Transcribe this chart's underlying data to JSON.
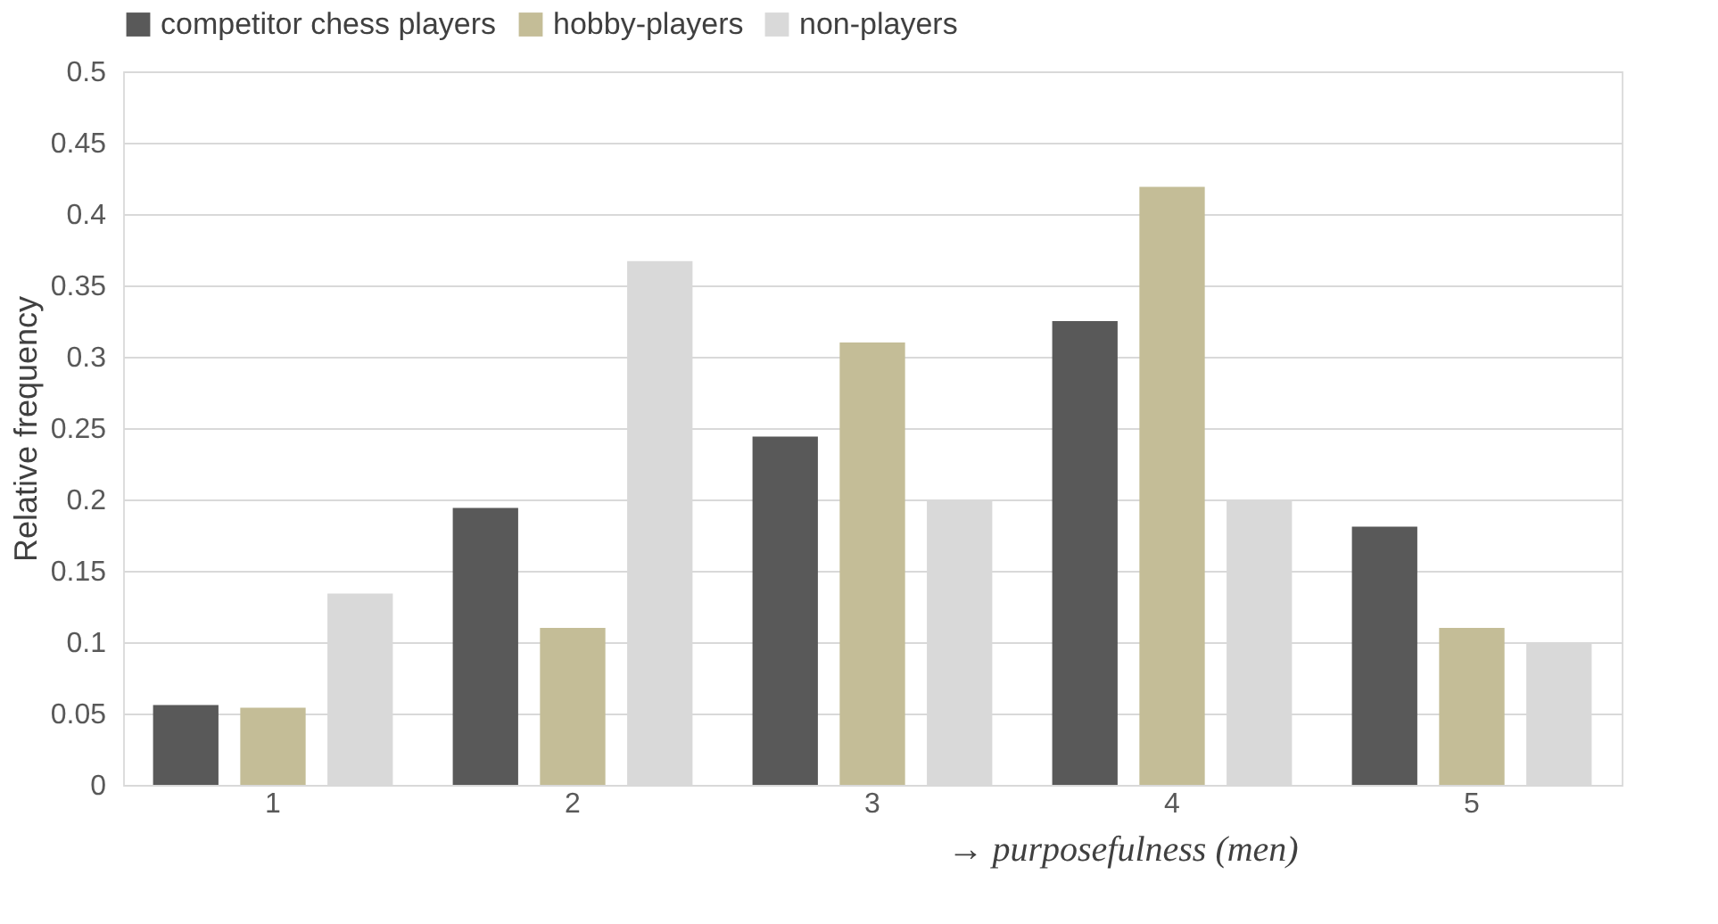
{
  "chart_data": {
    "type": "bar",
    "xlabel": "→ purposefulness (men)",
    "ylabel": "Relative frequency",
    "categories": [
      "1",
      "2",
      "3",
      "4",
      "5"
    ],
    "series": [
      {
        "name": "competitor chess players",
        "color": "#595959",
        "values": [
          0.056,
          0.194,
          0.244,
          0.325,
          0.181
        ]
      },
      {
        "name": "hobby-players",
        "color": "#c4bd97",
        "values": [
          0.054,
          0.11,
          0.31,
          0.419,
          0.11
        ]
      },
      {
        "name": "non-players",
        "color": "#d9d9d9",
        "values": [
          0.134,
          0.367,
          0.2,
          0.2,
          0.1
        ]
      }
    ],
    "ylim": [
      0,
      0.5
    ],
    "yticks": [
      0,
      0.05,
      0.1,
      0.15,
      0.2,
      0.25,
      0.3,
      0.35,
      0.4,
      0.45,
      0.5
    ],
    "grid": "y",
    "legend": "top"
  }
}
